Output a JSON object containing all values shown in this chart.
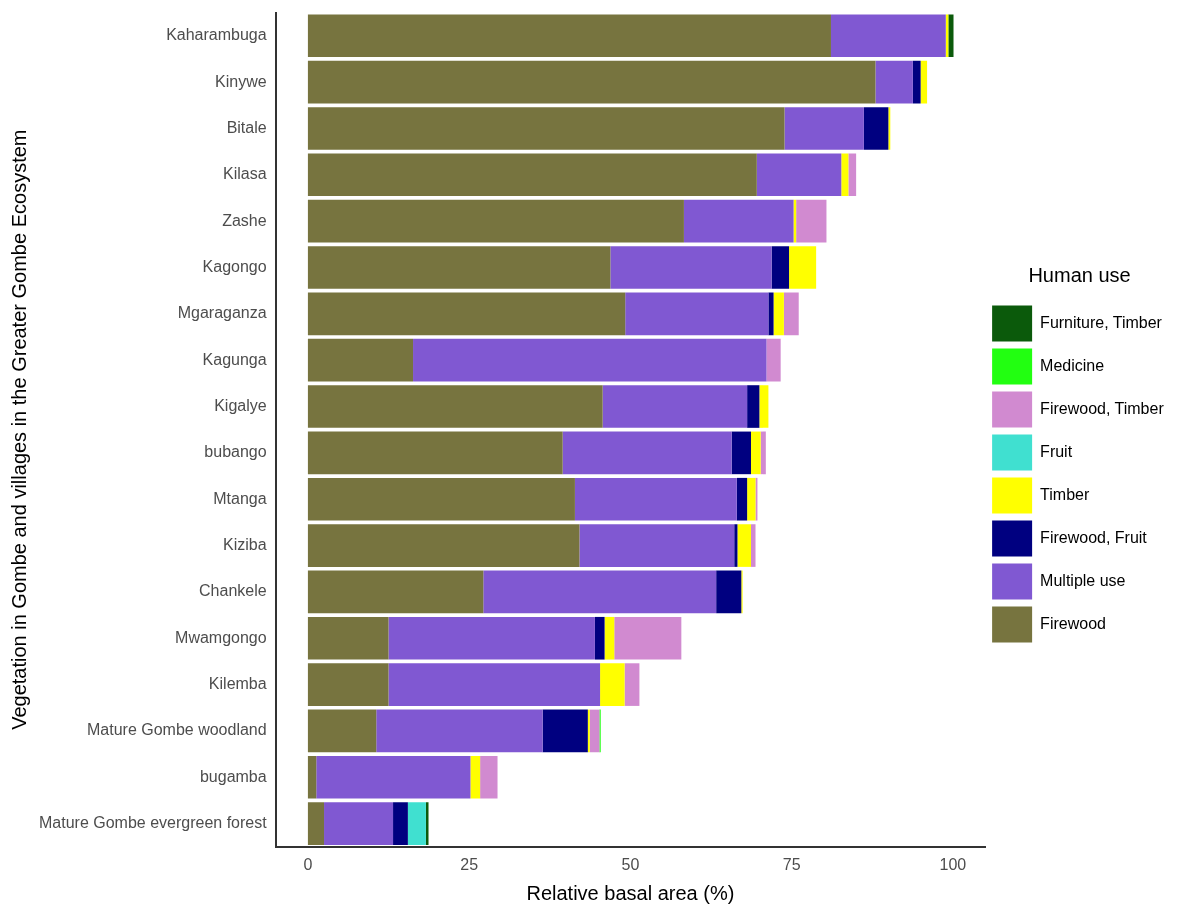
{
  "chart_data": {
    "type": "bar",
    "orientation": "horizontal",
    "stacked": true,
    "xlabel": "Relative basal area (%)",
    "ylabel": "Vegetation in Gombe and villages in the Greater Gombe Ecosystem",
    "legend_title": "Human use",
    "legend": "right",
    "grid": false,
    "categories": [
      "Kaharambuga",
      "Kinywe",
      "Bitale",
      "Kilasa",
      "Zashe",
      "Kagongo",
      "Mgaraganza",
      "Kagunga",
      "Kigalye",
      "bubango",
      "Mtanga",
      "Kiziba",
      "Chankele",
      "Mwamgongo",
      "Kilemba",
      "Mature Gombe woodland",
      "bugamba",
      "Mature Gombe evergreen forest"
    ],
    "xlim": [
      -5,
      105
    ],
    "xticks": [
      0,
      25,
      50,
      75,
      100
    ],
    "series": [
      {
        "name": "Firewood",
        "color": "#77743f",
        "values": [
          81.1,
          88.0,
          73.9,
          69.6,
          58.3,
          46.9,
          49.2,
          16.3,
          45.7,
          39.5,
          41.4,
          42.1,
          27.2,
          12.5,
          12.5,
          10.6,
          1.3,
          2.5
        ]
      },
      {
        "name": "Multiple use",
        "color": "#8058d2",
        "values": [
          17.8,
          5.8,
          12.3,
          13.1,
          17.0,
          25.0,
          22.2,
          54.8,
          22.4,
          26.2,
          25.1,
          24.0,
          36.1,
          32.0,
          32.8,
          25.8,
          23.9,
          10.7
        ]
      },
      {
        "name": "Firewood, Fruit",
        "color": "#000080",
        "values": [
          null,
          1.2,
          3.8,
          null,
          null,
          2.7,
          0.8,
          null,
          1.9,
          3.0,
          1.6,
          0.5,
          3.9,
          1.5,
          null,
          7.0,
          null,
          2.3
        ]
      },
      {
        "name": "Timber",
        "color": "#ffff00",
        "values": [
          0.4,
          1.0,
          0.3,
          1.1,
          0.4,
          4.2,
          1.6,
          null,
          1.4,
          1.5,
          1.3,
          2.1,
          0.2,
          1.5,
          3.8,
          0.3,
          1.5,
          null
        ]
      },
      {
        "name": "Fruit",
        "color": "#40e0d0",
        "values": [
          null,
          null,
          null,
          null,
          null,
          null,
          null,
          null,
          null,
          null,
          null,
          null,
          null,
          null,
          null,
          null,
          null,
          2.8
        ]
      },
      {
        "name": "Firewood, Timber",
        "color": "#d18ad0",
        "values": [
          null,
          null,
          null,
          1.2,
          4.7,
          null,
          2.3,
          2.2,
          null,
          0.8,
          0.3,
          0.7,
          null,
          10.4,
          2.3,
          1.5,
          2.7,
          null
        ]
      },
      {
        "name": "Medicine",
        "color": "#22ff11",
        "values": [
          null,
          null,
          null,
          null,
          null,
          null,
          null,
          null,
          null,
          null,
          null,
          null,
          null,
          null,
          null,
          0.2,
          null,
          null
        ]
      },
      {
        "name": "Furniture, Timber",
        "color": "#0b5a0b",
        "values": [
          0.8,
          null,
          null,
          null,
          null,
          null,
          null,
          null,
          null,
          null,
          null,
          null,
          null,
          null,
          null,
          null,
          null,
          0.4
        ]
      }
    ]
  }
}
